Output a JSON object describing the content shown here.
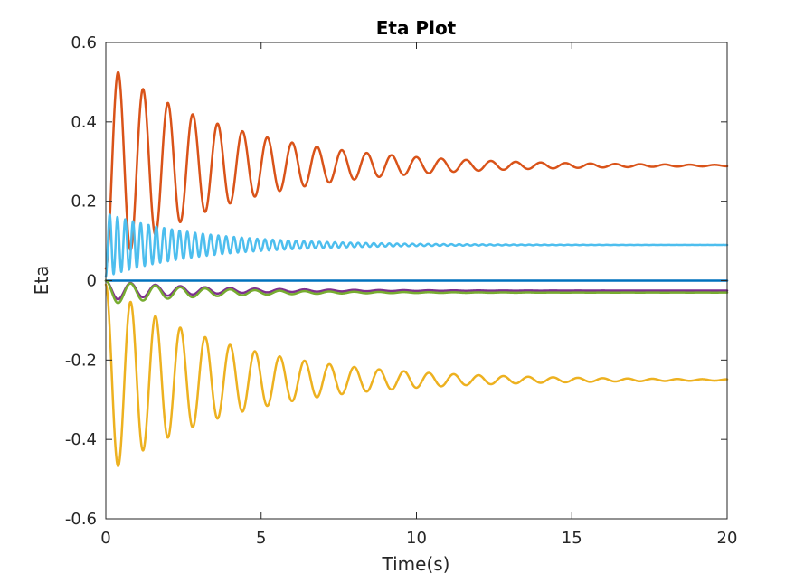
{
  "chart_data": {
    "type": "line",
    "title": "Eta Plot",
    "xlabel": "Time(s)",
    "ylabel": "Eta",
    "xlim": [
      0,
      20
    ],
    "ylim": [
      -0.6,
      0.6
    ],
    "xticks": [
      0,
      5,
      10,
      15,
      20
    ],
    "xtick_labels": [
      "0",
      "5",
      "10",
      "15",
      "20"
    ],
    "yticks": [
      -0.6,
      -0.4,
      -0.2,
      0,
      0.2,
      0.4,
      0.6
    ],
    "ytick_labels": [
      "-0.6",
      "-0.4",
      "-0.2",
      "0",
      "0.2",
      "0.4",
      "0.6"
    ],
    "grid": false,
    "legend": "none",
    "series": [
      {
        "color": "#0072BD",
        "model": {
          "final": 0.0,
          "amp": 0.0,
          "tau": 1,
          "period": 1,
          "phase": 0
        },
        "peak_points": [
          [
            0,
            0
          ],
          [
            20,
            0
          ]
        ]
      },
      {
        "color": "#D95319",
        "model": {
          "final": 0.29,
          "amp": 0.26,
          "tau": 4.0,
          "period": 0.8,
          "phase": -1.5708
        },
        "peak_points": [
          [
            0.35,
            0.53
          ],
          [
            0.65,
            0.1
          ],
          [
            1.15,
            0.46
          ],
          [
            1.55,
            0.15
          ],
          [
            2.0,
            0.41
          ],
          [
            2.8,
            0.37
          ],
          [
            3.6,
            0.35
          ],
          [
            20,
            0.29
          ]
        ]
      },
      {
        "color": "#EDB120",
        "model": {
          "final": -0.25,
          "amp": 0.24,
          "tau": 4.0,
          "period": 0.8,
          "phase": 1.5708
        },
        "peak_points": [
          [
            0.3,
            -0.47
          ],
          [
            0.55,
            -0.06
          ],
          [
            0.75,
            -0.43
          ],
          [
            1.0,
            -0.1
          ],
          [
            20,
            -0.25
          ]
        ]
      },
      {
        "color": "#7E2F8E",
        "model": {
          "final": -0.025,
          "amp": 0.025,
          "tau": 3.0,
          "period": 0.8,
          "phase": 1.5708
        },
        "peak_points": [
          [
            20,
            -0.025
          ]
        ]
      },
      {
        "color": "#77AC30",
        "model": {
          "final": -0.03,
          "amp": 0.03,
          "tau": 3.0,
          "period": 0.8,
          "phase": 1.5708
        },
        "peak_points": [
          [
            20,
            -0.03
          ]
        ]
      },
      {
        "color": "#4DBEEE",
        "model": {
          "final": 0.09,
          "amp": 0.08,
          "tau": 3.0,
          "period": 0.25,
          "phase": -1.5708
        },
        "peak_points": [
          [
            0.15,
            0.17
          ],
          [
            20,
            0.09
          ]
        ]
      }
    ]
  }
}
